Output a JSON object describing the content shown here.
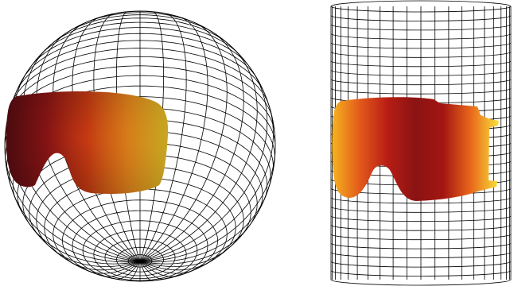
{
  "figure": {
    "panels": [
      {
        "shape": "sphere",
        "grid": {
          "meridians": 36,
          "parallels": 36,
          "line_color": "#000000"
        },
        "lens": {
          "style": "spherical",
          "colors": [
            "#5a0d12",
            "#8e1515",
            "#c73a12",
            "#f08a1c",
            "#f6d02a"
          ]
        }
      },
      {
        "shape": "cylinder",
        "grid": {
          "columns": 20,
          "rows": 30,
          "line_color": "#000000"
        },
        "lens": {
          "style": "cylindrical",
          "colors": [
            "#f5b31f",
            "#e3591b",
            "#b71d14",
            "#8a1313",
            "#a31612",
            "#e9681b",
            "#f8e23a"
          ]
        }
      }
    ],
    "background": "#ffffff"
  }
}
